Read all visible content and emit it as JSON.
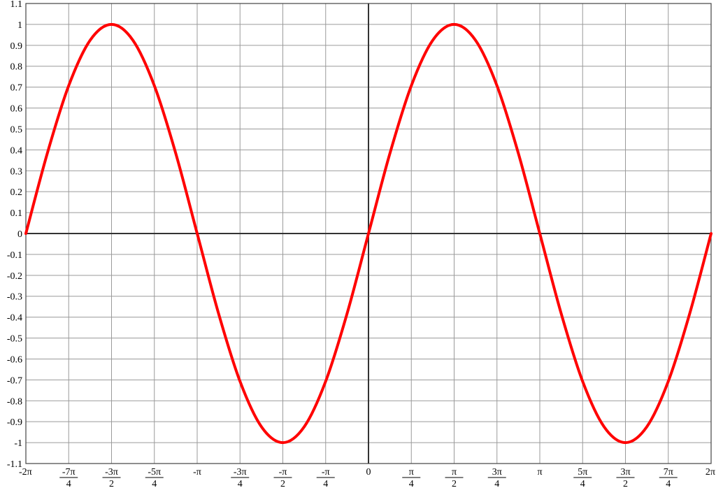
{
  "chart_data": {
    "type": "line",
    "title": "",
    "xlabel": "",
    "ylabel": "",
    "xlim": [
      -6.283185307,
      6.283185307
    ],
    "ylim": [
      -1.1,
      1.1
    ],
    "grid": true,
    "x_ticks": [
      {
        "value": -6.283185307,
        "num": "-2π",
        "den": ""
      },
      {
        "value": -5.497787144,
        "num": "-7π",
        "den": "4"
      },
      {
        "value": -4.71238898,
        "num": "-3π",
        "den": "2"
      },
      {
        "value": -3.926990817,
        "num": "-5π",
        "den": "4"
      },
      {
        "value": -3.141592654,
        "num": "-π",
        "den": ""
      },
      {
        "value": -2.35619449,
        "num": "-3π",
        "den": "4"
      },
      {
        "value": -1.570796327,
        "num": "-π",
        "den": "2"
      },
      {
        "value": -0.785398163,
        "num": "-π",
        "den": "4"
      },
      {
        "value": 0,
        "num": "0",
        "den": ""
      },
      {
        "value": 0.785398163,
        "num": "π",
        "den": "4"
      },
      {
        "value": 1.570796327,
        "num": "π",
        "den": "2"
      },
      {
        "value": 2.35619449,
        "num": "3π",
        "den": "4"
      },
      {
        "value": 3.141592654,
        "num": "π",
        "den": ""
      },
      {
        "value": 3.926990817,
        "num": "5π",
        "den": "4"
      },
      {
        "value": 4.71238898,
        "num": "3π",
        "den": "2"
      },
      {
        "value": 5.497787144,
        "num": "7π",
        "den": "4"
      },
      {
        "value": 6.283185307,
        "num": "2π",
        "den": ""
      }
    ],
    "y_ticks": [
      {
        "value": 1.1,
        "label": "1.1"
      },
      {
        "value": 1.0,
        "label": "1"
      },
      {
        "value": 0.9,
        "label": "0.9"
      },
      {
        "value": 0.8,
        "label": "0.8"
      },
      {
        "value": 0.7,
        "label": "0.7"
      },
      {
        "value": 0.6,
        "label": "0.6"
      },
      {
        "value": 0.5,
        "label": "0.5"
      },
      {
        "value": 0.4,
        "label": "0.4"
      },
      {
        "value": 0.3,
        "label": "0.3"
      },
      {
        "value": 0.2,
        "label": "0.2"
      },
      {
        "value": 0.1,
        "label": "0.1"
      },
      {
        "value": 0.0,
        "label": "0"
      },
      {
        "value": -0.1,
        "label": "-0.1"
      },
      {
        "value": -0.2,
        "label": "-0.2"
      },
      {
        "value": -0.3,
        "label": "-0.3"
      },
      {
        "value": -0.4,
        "label": "-0.4"
      },
      {
        "value": -0.5,
        "label": "-0.5"
      },
      {
        "value": -0.6,
        "label": "-0.6"
      },
      {
        "value": -0.7,
        "label": "-0.7"
      },
      {
        "value": -0.8,
        "label": "-0.8"
      },
      {
        "value": -0.9,
        "label": "-0.9"
      },
      {
        "value": -1.0,
        "label": "-1"
      },
      {
        "value": -1.1,
        "label": "-1.1"
      }
    ],
    "series": [
      {
        "color": "#ff0000",
        "x": [
          -6.283185307,
          -5.890486225,
          -5.497787144,
          -5.105088062,
          -4.71238898,
          -4.319689899,
          -3.926990817,
          -3.534291735,
          -3.141592654,
          -2.748893572,
          -2.35619449,
          -1.963495408,
          -1.570796327,
          -1.178097245,
          -0.785398163,
          -0.392699082,
          0,
          0.392699082,
          0.785398163,
          1.178097245,
          1.570796327,
          1.963495408,
          2.35619449,
          2.748893572,
          3.141592654,
          3.534291735,
          3.926990817,
          4.319689899,
          4.71238898,
          5.105088062,
          5.497787144,
          5.890486225,
          6.283185307
        ],
        "y": [
          0,
          0.383,
          0.707,
          0.924,
          1,
          0.924,
          0.707,
          0.383,
          0,
          -0.383,
          -0.707,
          -0.924,
          -1,
          -0.924,
          -0.707,
          -0.383,
          0,
          0.383,
          0.707,
          0.924,
          1,
          0.924,
          0.707,
          0.383,
          0,
          -0.383,
          -0.707,
          -0.924,
          -1,
          -0.924,
          -0.707,
          -0.383,
          0
        ]
      }
    ],
    "colors": {
      "curve": "#ff0000",
      "grid": "#9a9a9a",
      "axis": "#333333"
    }
  }
}
